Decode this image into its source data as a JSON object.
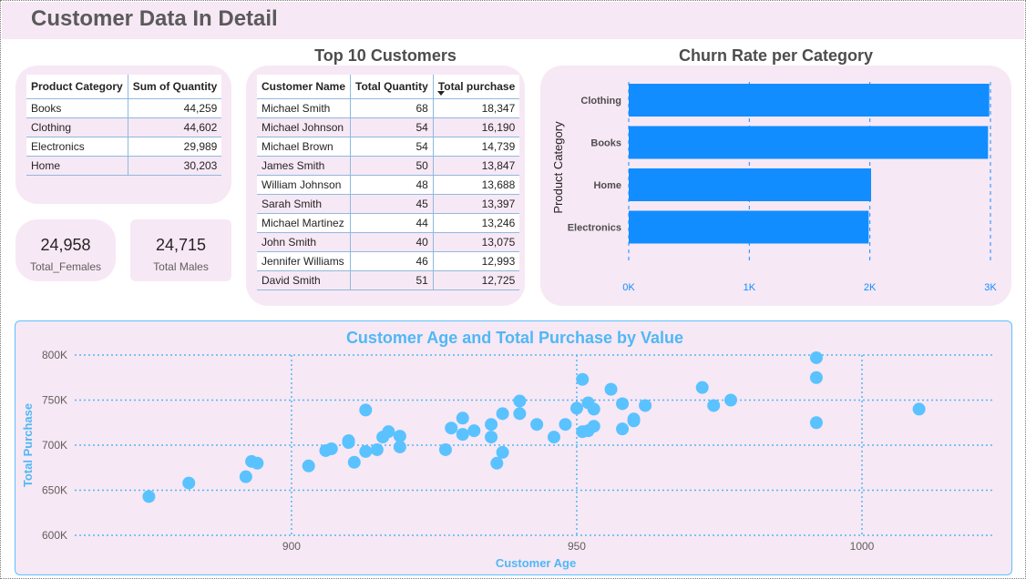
{
  "page": {
    "title": "Customer Data In Detail"
  },
  "category_table": {
    "headers": [
      "Product Category",
      "Sum of Quantity"
    ],
    "rows": [
      [
        "Books",
        "44,259"
      ],
      [
        "Clothing",
        "44,602"
      ],
      [
        "Electronics",
        "29,989"
      ],
      [
        "Home",
        "30,203"
      ]
    ]
  },
  "cards": {
    "females": {
      "value": "24,958",
      "label": "Total_Females"
    },
    "males": {
      "value": "24,715",
      "label": "Total Males"
    }
  },
  "top_customers": {
    "title": "Top 10 Customers",
    "headers": [
      "Customer Name",
      "Total Quantity",
      "Total purchase"
    ],
    "sort_icon": "sort-descending-icon",
    "rows": [
      [
        "Michael Smith",
        "68",
        "18,347"
      ],
      [
        "Michael Johnson",
        "54",
        "16,190"
      ],
      [
        "Michael Brown",
        "54",
        "14,739"
      ],
      [
        "James Smith",
        "50",
        "13,847"
      ],
      [
        "William Johnson",
        "48",
        "13,688"
      ],
      [
        "Sarah Smith",
        "45",
        "13,397"
      ],
      [
        "Michael Martinez",
        "44",
        "13,246"
      ],
      [
        "John Smith",
        "40",
        "13,075"
      ],
      [
        "Jennifer Williams",
        "46",
        "12,993"
      ],
      [
        "David Smith",
        "51",
        "12,725"
      ]
    ]
  },
  "chart_data": [
    {
      "type": "bar",
      "orientation": "horizontal",
      "title": "Churn Rate per Category",
      "xlabel": "",
      "ylabel": "Product Category",
      "categories": [
        "Clothing",
        "Books",
        "Home",
        "Electronics"
      ],
      "values": [
        2990,
        2980,
        2010,
        1990
      ],
      "xlim": [
        0,
        3000
      ],
      "xticks": [
        0,
        1000,
        2000,
        3000
      ],
      "xtick_labels": [
        "0K",
        "1K",
        "2K",
        "3K"
      ],
      "grid": true,
      "color": "#118dff"
    },
    {
      "type": "scatter",
      "title": "Customer Age and Total Purchase by Value",
      "xlabel": "Customer Age",
      "ylabel": "Total Purchase",
      "xlim": [
        862,
        1023
      ],
      "ylim": [
        600000,
        800000
      ],
      "xticks": [
        900,
        950,
        1000
      ],
      "xtick_labels": [
        "900",
        "950",
        "1000"
      ],
      "yticks": [
        600000,
        650000,
        700000,
        750000,
        800000
      ],
      "ytick_labels": [
        "600K",
        "650K",
        "700K",
        "750K",
        "800K"
      ],
      "grid": true,
      "color": "#5ac2ff",
      "points": [
        [
          875,
          643000
        ],
        [
          882,
          658000
        ],
        [
          892,
          665000
        ],
        [
          893,
          682000
        ],
        [
          894,
          680000
        ],
        [
          903,
          677000
        ],
        [
          906,
          694000
        ],
        [
          907,
          696000
        ],
        [
          910,
          703000
        ],
        [
          910,
          705000
        ],
        [
          911,
          681000
        ],
        [
          913,
          693000
        ],
        [
          913,
          739000
        ],
        [
          915,
          695000
        ],
        [
          916,
          709000
        ],
        [
          917,
          715000
        ],
        [
          919,
          698000
        ],
        [
          919,
          710000
        ],
        [
          927,
          695000
        ],
        [
          928,
          719000
        ],
        [
          930,
          712000
        ],
        [
          930,
          730000
        ],
        [
          932,
          716000
        ],
        [
          935,
          709000
        ],
        [
          935,
          723000
        ],
        [
          936,
          680000
        ],
        [
          937,
          692000
        ],
        [
          937,
          735000
        ],
        [
          940,
          735000
        ],
        [
          940,
          749000
        ],
        [
          943,
          723000
        ],
        [
          946,
          709000
        ],
        [
          948,
          723000
        ],
        [
          950,
          741000
        ],
        [
          951,
          715000
        ],
        [
          951,
          773000
        ],
        [
          952,
          716000
        ],
        [
          952,
          747000
        ],
        [
          953,
          721000
        ],
        [
          953,
          740000
        ],
        [
          956,
          762000
        ],
        [
          958,
          718000
        ],
        [
          958,
          746000
        ],
        [
          960,
          727000
        ],
        [
          960,
          729000
        ],
        [
          962,
          744000
        ],
        [
          972,
          764000
        ],
        [
          974,
          744000
        ],
        [
          977,
          750000
        ],
        [
          992,
          797000
        ],
        [
          992,
          775000
        ],
        [
          992,
          725000
        ],
        [
          1010,
          740000
        ]
      ]
    }
  ]
}
